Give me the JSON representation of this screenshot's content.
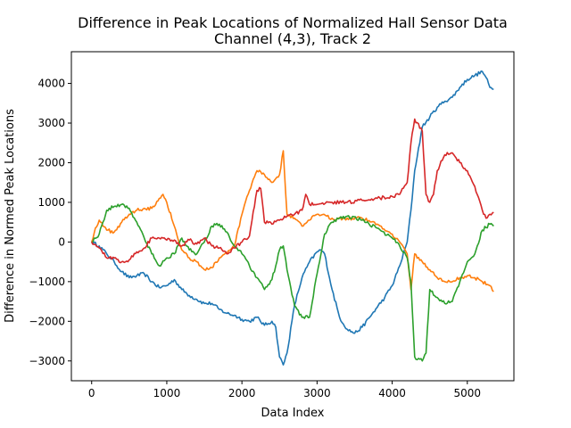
{
  "chart_data": {
    "type": "line",
    "title": "Difference in Peak Locations of Normalized Hall Sensor Data",
    "subtitle": "Channel (4,3), Track 2",
    "xlabel": "Data Index",
    "ylabel": "Difference in Normed Peak Locations",
    "xlim": [
      -270,
      5620
    ],
    "ylim": [
      -3500,
      4800
    ],
    "xticks": [
      0,
      1000,
      2000,
      3000,
      4000,
      5000
    ],
    "yticks": [
      -3000,
      -2000,
      -1000,
      0,
      1000,
      2000,
      3000,
      4000
    ],
    "grid": false,
    "series": [
      {
        "color": "#1f77b4",
        "x": [
          0,
          100,
          200,
          300,
          400,
          500,
          600,
          700,
          800,
          900,
          1000,
          1100,
          1200,
          1300,
          1400,
          1500,
          1600,
          1700,
          1800,
          1900,
          2000,
          2100,
          2200,
          2300,
          2400,
          2450,
          2500,
          2550,
          2600,
          2700,
          2800,
          2900,
          3000,
          3050,
          3100,
          3200,
          3300,
          3400,
          3500,
          3600,
          3700,
          3800,
          3900,
          4000,
          4100,
          4200,
          4250,
          4300,
          4400,
          4500,
          4600,
          4700,
          4800,
          4900,
          5000,
          5100,
          5200,
          5250,
          5300,
          5350
        ],
        "y": [
          0,
          -100,
          -300,
          -500,
          -750,
          -900,
          -850,
          -800,
          -1000,
          -1150,
          -1100,
          -950,
          -1200,
          -1350,
          -1450,
          -1550,
          -1550,
          -1700,
          -1800,
          -1850,
          -1950,
          -2000,
          -1900,
          -2100,
          -2000,
          -2150,
          -2900,
          -3100,
          -2800,
          -1600,
          -900,
          -500,
          -250,
          -200,
          -300,
          -1200,
          -1900,
          -2200,
          -2300,
          -2150,
          -1900,
          -1650,
          -1400,
          -1100,
          -600,
          0,
          800,
          1800,
          2900,
          3150,
          3400,
          3550,
          3650,
          3900,
          4100,
          4200,
          4300,
          4150,
          3900,
          3850
        ]
      },
      {
        "color": "#ff7f0e",
        "x": [
          0,
          50,
          100,
          150,
          200,
          300,
          400,
          500,
          600,
          700,
          800,
          900,
          950,
          1000,
          1100,
          1200,
          1300,
          1400,
          1500,
          1600,
          1700,
          1800,
          1900,
          2000,
          2100,
          2200,
          2300,
          2400,
          2450,
          2500,
          2550,
          2600,
          2700,
          2800,
          2900,
          3000,
          3200,
          3400,
          3600,
          3800,
          4000,
          4100,
          4200,
          4250,
          4300,
          4400,
          4500,
          4600,
          4700,
          4800,
          4900,
          5000,
          5100,
          5200,
          5300,
          5350
        ],
        "y": [
          0,
          350,
          550,
          400,
          300,
          250,
          500,
          700,
          800,
          850,
          850,
          1100,
          1200,
          1000,
          400,
          -200,
          -400,
          -500,
          -700,
          -650,
          -400,
          -300,
          -100,
          700,
          1300,
          1800,
          1700,
          1500,
          1600,
          1700,
          2300,
          700,
          600,
          400,
          550,
          700,
          600,
          600,
          600,
          450,
          200,
          0,
          -300,
          -1200,
          -300,
          -500,
          -700,
          -900,
          -1000,
          -1000,
          -900,
          -850,
          -900,
          -1000,
          -1100,
          -1250
        ]
      },
      {
        "color": "#2ca02c",
        "x": [
          0,
          100,
          150,
          200,
          300,
          400,
          500,
          600,
          700,
          800,
          900,
          1000,
          1100,
          1200,
          1300,
          1400,
          1500,
          1600,
          1700,
          1800,
          1900,
          2000,
          2100,
          2200,
          2300,
          2400,
          2450,
          2500,
          2550,
          2600,
          2700,
          2800,
          2900,
          3000,
          3100,
          3200,
          3300,
          3400,
          3600,
          3800,
          4000,
          4100,
          4200,
          4250,
          4300,
          4400,
          4450,
          4500,
          4600,
          4700,
          4800,
          4900,
          5000,
          5100,
          5200,
          5300,
          5350
        ],
        "y": [
          0,
          200,
          500,
          800,
          900,
          950,
          850,
          500,
          100,
          -300,
          -600,
          -400,
          -300,
          100,
          -200,
          -300,
          0,
          400,
          450,
          250,
          -100,
          -300,
          -600,
          -900,
          -1200,
          -950,
          -600,
          -200,
          -100,
          -700,
          -1600,
          -1900,
          -1900,
          -800,
          200,
          500,
          600,
          650,
          550,
          350,
          100,
          -100,
          -400,
          -1000,
          -2900,
          -3000,
          -2800,
          -1200,
          -1400,
          -1550,
          -1500,
          -1000,
          -500,
          -300,
          300,
          450,
          400
        ]
      },
      {
        "color": "#d62728",
        "x": [
          0,
          100,
          200,
          300,
          400,
          500,
          600,
          700,
          800,
          900,
          1000,
          1100,
          1200,
          1300,
          1400,
          1500,
          1600,
          1700,
          1800,
          1900,
          2000,
          2100,
          2200,
          2250,
          2300,
          2400,
          2500,
          2600,
          2700,
          2800,
          2850,
          2900,
          3000,
          3200,
          3400,
          3600,
          3800,
          4000,
          4100,
          4200,
          4250,
          4300,
          4400,
          4450,
          4500,
          4550,
          4600,
          4700,
          4800,
          4900,
          5000,
          5100,
          5200,
          5250,
          5300,
          5350
        ],
        "y": [
          0,
          -150,
          -400,
          -400,
          -500,
          -450,
          -250,
          -150,
          100,
          100,
          50,
          50,
          -100,
          50,
          -50,
          100,
          -100,
          -150,
          -300,
          -150,
          0,
          150,
          1300,
          1350,
          500,
          450,
          550,
          650,
          700,
          800,
          1200,
          950,
          950,
          1000,
          1000,
          1050,
          1100,
          1150,
          1200,
          1500,
          2500,
          3100,
          2800,
          1200,
          1000,
          1200,
          1800,
          2200,
          2250,
          2000,
          1800,
          1400,
          800,
          600,
          700,
          750
        ]
      }
    ]
  }
}
